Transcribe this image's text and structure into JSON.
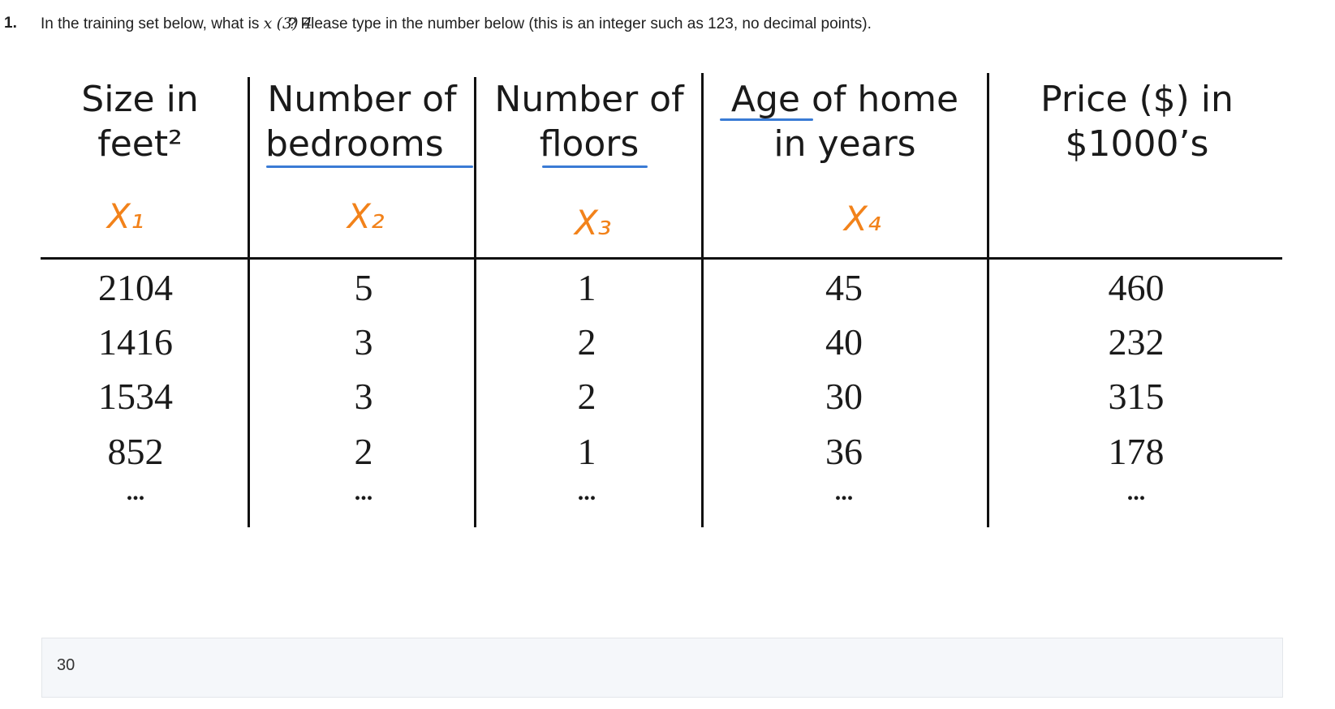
{
  "question": {
    "number": "1.",
    "text_before": "In the training set below, what is",
    "math_base": "x",
    "math_sup": "(3)",
    "math_sub": "4",
    "text_after": "? Please type in the number below (this is an integer such as 123, no decimal points)."
  },
  "table": {
    "headers": [
      {
        "line1": "Size in",
        "line2": "feet²"
      },
      {
        "line1": "Number of",
        "line2": "bedrooms"
      },
      {
        "line1": "Number of",
        "line2": "floors"
      },
      {
        "line1": "Age of home",
        "line2": "in years"
      },
      {
        "line1": "Price ($) in",
        "line2": "$1000’s"
      }
    ],
    "vars": [
      "X₁",
      "X₂",
      "X₃",
      "X₄"
    ],
    "rows": [
      [
        "2104",
        "5",
        "1",
        "45",
        "460"
      ],
      [
        "1416",
        "3",
        "2",
        "40",
        "232"
      ],
      [
        "1534",
        "3",
        "2",
        "30",
        "315"
      ],
      [
        "852",
        "2",
        "1",
        "36",
        "178"
      ],
      [
        "...",
        "...",
        "...",
        "...",
        "..."
      ]
    ]
  },
  "answer": {
    "value": "30"
  },
  "colors": {
    "annotation_orange": "#f2821a",
    "underline_blue": "#3a7bd5"
  }
}
